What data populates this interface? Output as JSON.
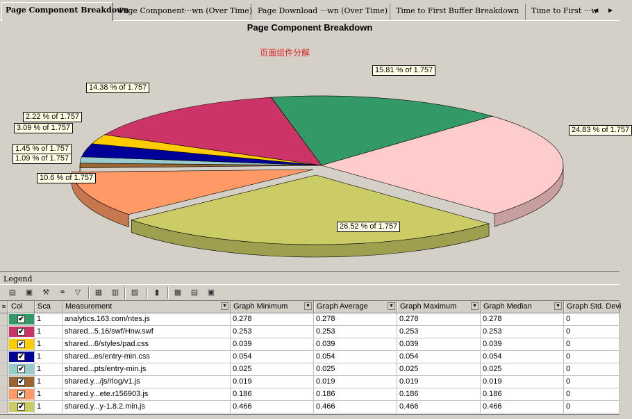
{
  "tabs": [
    {
      "label": "Page Component Breakdown",
      "active": true
    },
    {
      "label": "Page Component···wn (Over Time)",
      "active": false
    },
    {
      "label": "Page Download ···wn (Over Time)",
      "active": false
    },
    {
      "label": "Time to First Buffer Breakdown",
      "active": false
    },
    {
      "label": "Time to First ···w",
      "active": false
    }
  ],
  "tab_scroll_label": "◄ ►",
  "chart_data": {
    "type": "pie",
    "title": "Page Component Breakdown",
    "subtitle": "页面组件分解",
    "total": 1.757,
    "slices": [
      {
        "label": "15.81 % of 1.757",
        "percent": 15.81,
        "color": "#339966"
      },
      {
        "label": "24.83 % of 1.757",
        "percent": 24.83,
        "color": "#ffcccc"
      },
      {
        "label": "26.52 % of 1.757",
        "percent": 26.52,
        "color": "#cccc66"
      },
      {
        "label": "10.6 % of 1.757",
        "percent": 10.6,
        "color": "#ff9966"
      },
      {
        "label": "1.09 % of 1.757",
        "percent": 1.09,
        "color": "#996633"
      },
      {
        "label": "1.45 % of 1.757",
        "percent": 1.45,
        "color": "#99cccc"
      },
      {
        "label": "3.09 % of 1.757",
        "percent": 3.09,
        "color": "#000099"
      },
      {
        "label": "2.22 % of 1.757",
        "percent": 2.22,
        "color": "#ffcc00"
      },
      {
        "label": "14.38 % of 1.757",
        "percent": 14.38,
        "color": "#cc3366"
      }
    ]
  },
  "legend": {
    "title": "Legend",
    "columns": [
      "Col",
      "Sca",
      "Measurement",
      "Graph Minimum",
      "Graph Average",
      "Graph Maximum",
      "Graph Median",
      "Graph Std. Devi"
    ],
    "rows": [
      {
        "color": "#339966",
        "scale": "1",
        "measurement": "analytics.163.com/ntes.js",
        "min": "0.278",
        "avg": "0.278",
        "max": "0.278",
        "median": "0.278",
        "std": "0"
      },
      {
        "color": "#cc3366",
        "scale": "1",
        "measurement": "shared...5.16/swf/Hnw.swf",
        "min": "0.253",
        "avg": "0.253",
        "max": "0.253",
        "median": "0.253",
        "std": "0"
      },
      {
        "color": "#ffcc00",
        "scale": "1",
        "measurement": "shared...6/styles/pad.css",
        "min": "0.039",
        "avg": "0.039",
        "max": "0.039",
        "median": "0.039",
        "std": "0"
      },
      {
        "color": "#000099",
        "scale": "1",
        "measurement": "shared...es/entry-min.css",
        "min": "0.054",
        "avg": "0.054",
        "max": "0.054",
        "median": "0.054",
        "std": "0"
      },
      {
        "color": "#99cccc",
        "scale": "1",
        "measurement": "shared...pts/entry-min.js",
        "min": "0.025",
        "avg": "0.025",
        "max": "0.025",
        "median": "0.025",
        "std": "0"
      },
      {
        "color": "#996633",
        "scale": "1",
        "measurement": "shared.y.../js/rlog/v1.js",
        "min": "0.019",
        "avg": "0.019",
        "max": "0.019",
        "median": "0.019",
        "std": "0"
      },
      {
        "color": "#ff9966",
        "scale": "1",
        "measurement": "shared.y...ete.r156903.js",
        "min": "0.186",
        "avg": "0.186",
        "max": "0.186",
        "median": "0.186",
        "std": "0"
      },
      {
        "color": "#cccc66",
        "scale": "1",
        "measurement": "shared.y...y-1.8.2.min.js",
        "min": "0.466",
        "avg": "0.466",
        "max": "0.466",
        "median": "0.466",
        "std": "0"
      }
    ]
  },
  "toolbar_icons": [
    "add-measurement-icon",
    "remove-measurement-icon",
    "configure-icon",
    "link-icon",
    "filter-icon",
    "highlight-icon",
    "show-icon",
    "hide-icon",
    "export-icon",
    "copy-icon",
    "font-icon",
    "properties-icon"
  ],
  "check_mark": "✔"
}
